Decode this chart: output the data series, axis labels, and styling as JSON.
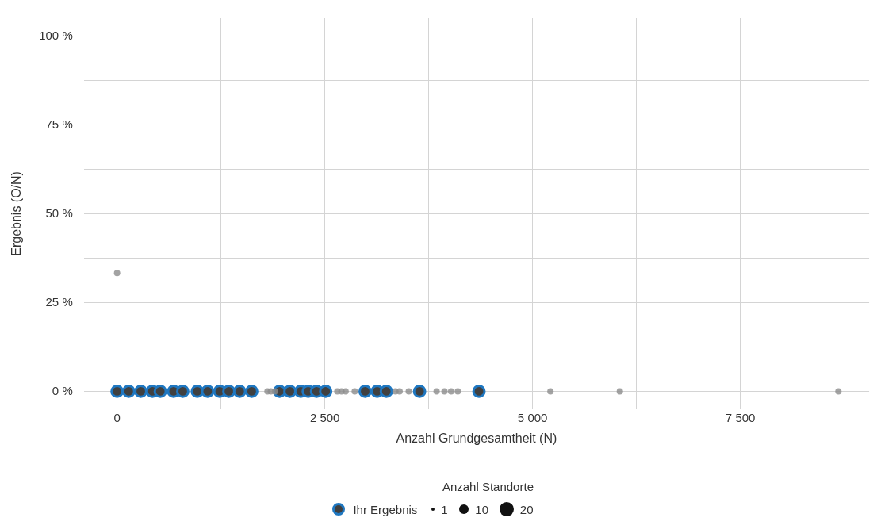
{
  "chart_data": {
    "type": "bubble",
    "xlabel": "Anzahl Grundgesamtheit (N)",
    "ylabel": "Ergebnis (O/N)",
    "legend_title": "Anzahl Standorte",
    "size_legend": [
      1,
      10,
      20
    ],
    "legend": "bottom",
    "grid": true,
    "xlim": [
      -400,
      9050
    ],
    "xticks": [
      {
        "value": 0,
        "label": "0"
      },
      {
        "value": 1250,
        "label": null
      },
      {
        "value": 2500,
        "label": "2 500"
      },
      {
        "value": 3750,
        "label": null
      },
      {
        "value": 5000,
        "label": "5 000"
      },
      {
        "value": 6250,
        "label": null
      },
      {
        "value": 7500,
        "label": "7 500"
      },
      {
        "value": 8750,
        "label": null
      }
    ],
    "ylim": [
      -5,
      105
    ],
    "yticks": [
      {
        "value": 0,
        "label": "0 %"
      },
      {
        "value": 12.5,
        "label": null
      },
      {
        "value": 25,
        "label": "25 %"
      },
      {
        "value": 37.5,
        "label": null
      },
      {
        "value": 50,
        "label": "50 %"
      },
      {
        "value": 62.5,
        "label": null
      },
      {
        "value": 75,
        "label": "75 %"
      },
      {
        "value": 87.5,
        "label": null
      },
      {
        "value": 100,
        "label": "100 %"
      }
    ],
    "series": [
      {
        "color": "#8c8c8c",
        "x": [
          0,
          1810,
          1850,
          1900,
          2650,
          2700,
          2750,
          2860,
          3350,
          3400,
          3510,
          3845,
          3940,
          4020,
          4100,
          5215,
          6050,
          8680
        ],
        "values": [
          33.3,
          0,
          0,
          0,
          0,
          0,
          0,
          0,
          0,
          0,
          0,
          0,
          0,
          0,
          0,
          0,
          0,
          0
        ],
        "sizes": [
          4,
          4,
          4,
          4,
          4,
          4,
          4,
          4,
          4,
          4,
          4,
          4,
          4,
          4,
          4,
          4,
          4,
          4
        ]
      },
      {
        "name": "Ihr Ergebnis",
        "color": "#1f77c0",
        "x": [
          0,
          140,
          285,
          425,
          520,
          680,
          790,
          965,
          1090,
          1235,
          1345,
          1475,
          1620,
          1955,
          2080,
          2210,
          2300,
          2400,
          2510,
          2985,
          3130,
          3240,
          3640,
          4355
        ],
        "values": [
          0,
          0,
          0,
          0,
          0,
          0,
          0,
          0,
          0,
          0,
          0,
          0,
          0,
          0,
          0,
          0,
          0,
          0,
          0,
          0,
          0,
          0,
          0,
          0
        ],
        "sizes": [
          12,
          12,
          12,
          12,
          12,
          12,
          12,
          12,
          12,
          12,
          12,
          12,
          12,
          12,
          12,
          12,
          12,
          12,
          12,
          12,
          12,
          12,
          12,
          12
        ]
      }
    ]
  }
}
